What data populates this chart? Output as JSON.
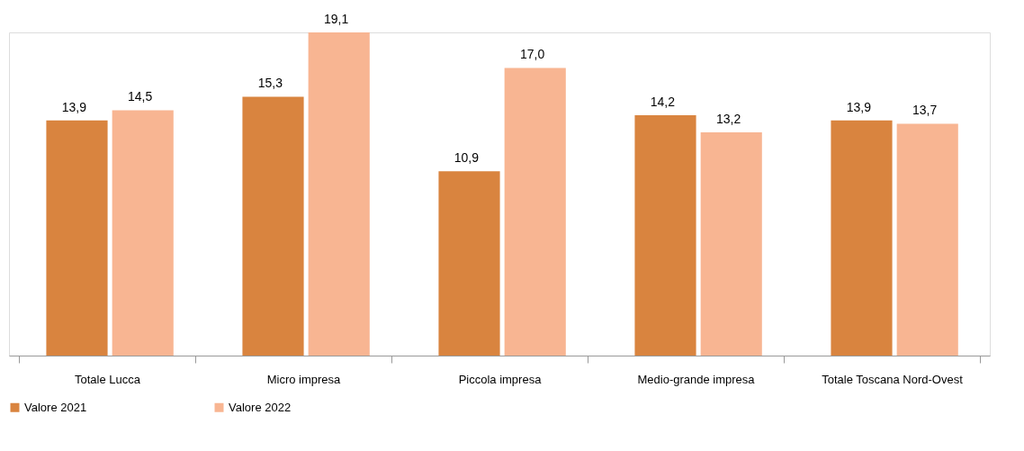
{
  "chart_data": {
    "type": "bar",
    "categories": [
      "Totale Lucca",
      "Micro impresa",
      "Piccola impresa",
      "Medio-grande impresa",
      "Totale Toscana Nord-Ovest"
    ],
    "series": [
      {
        "name": "Valore 2021",
        "color": "#d9843f",
        "values": [
          13.9,
          15.3,
          10.9,
          14.2,
          13.9
        ],
        "value_labels": [
          "13,9",
          "15,3",
          "10,9",
          "14,2",
          "13,9"
        ]
      },
      {
        "name": "Valore 2022",
        "color": "#f8b592",
        "values": [
          14.5,
          19.1,
          17.0,
          13.2,
          13.7
        ],
        "value_labels": [
          "14,5",
          "19,1",
          "17,0",
          "13,2",
          "13,7"
        ]
      }
    ],
    "legend": "bottom",
    "grid": false
  }
}
